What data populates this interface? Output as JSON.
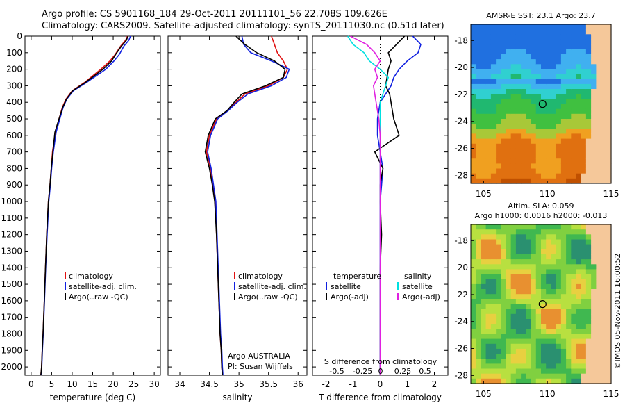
{
  "title_line1": "Argo profile: CS 5901168_184 29-Oct-2011 20111101_56 22.708S 109.626E",
  "title_line2": "Climatology: CARS2009. Satellite-adjusted climatology: synTS_20111030.nc (0.51d later)",
  "colors": {
    "climatology": "#e01010",
    "satellite": "#1020e0",
    "argo": "#000000",
    "sal_satellite": "#00e0e0",
    "sal_argo": "#e020e0"
  },
  "depth_axis": {
    "ylim": [
      0,
      2050
    ],
    "ticks": [
      0,
      100,
      200,
      300,
      400,
      500,
      600,
      700,
      800,
      900,
      1000,
      1100,
      1200,
      1300,
      1400,
      1500,
      1600,
      1700,
      1800,
      1900,
      2000
    ]
  },
  "chart_data": [
    {
      "type": "line",
      "xlabel": "temperature (deg C)",
      "ylabel": "",
      "xlim": [
        -1.5,
        31.5
      ],
      "xticks": [
        0,
        5,
        10,
        15,
        20,
        25,
        30
      ],
      "legend": [
        "climatology",
        "satellite-adj. clim.",
        "Argo(..raw -QC)"
      ],
      "legend_position": "bottom-center",
      "series": [
        {
          "name": "climatology",
          "color_key": "climatology",
          "x": [
            23.5,
            23.0,
            21.8,
            20.5,
            19.2,
            17.0,
            13.0,
            10.0,
            8.5,
            7.6,
            6.8,
            5.9,
            5.2,
            4.9,
            4.6,
            4.2,
            3.8,
            3.5,
            3.2,
            2.9,
            2.7,
            2.55,
            2.45,
            2.35
          ],
          "y": [
            0,
            25,
            60,
            110,
            150,
            200,
            280,
            330,
            380,
            430,
            500,
            580,
            700,
            800,
            900,
            1000,
            1200,
            1400,
            1600,
            1800,
            1900,
            2000,
            2030,
            2050
          ]
        },
        {
          "name": "satellite-adj. clim.",
          "color_key": "satellite",
          "x": [
            24.2,
            23.8,
            22.6,
            21.5,
            20.2,
            18.2,
            13.5,
            10.3,
            8.7,
            7.8,
            7.0,
            6.1,
            5.4,
            5.0,
            4.7,
            4.3,
            3.9,
            3.55,
            3.25,
            2.95,
            2.75,
            2.6,
            2.5,
            2.4
          ],
          "y": [
            0,
            25,
            60,
            110,
            150,
            200,
            280,
            330,
            380,
            430,
            500,
            580,
            700,
            800,
            900,
            1000,
            1200,
            1400,
            1600,
            1800,
            1900,
            2000,
            2030,
            2050
          ]
        },
        {
          "name": "Argo(..raw -QC)",
          "color_key": "argo",
          "x": [
            23.6,
            23.2,
            22.0,
            20.6,
            19.6,
            17.5,
            13.2,
            10.1,
            8.6,
            7.7,
            6.8,
            5.8,
            5.3,
            4.9,
            4.6,
            4.2,
            3.8,
            3.5,
            3.2,
            2.9,
            2.7,
            2.55,
            2.45,
            2.35
          ],
          "y": [
            0,
            25,
            60,
            110,
            150,
            200,
            280,
            330,
            380,
            430,
            500,
            580,
            700,
            800,
            900,
            1000,
            1200,
            1400,
            1600,
            1800,
            1900,
            2000,
            2030,
            2050
          ]
        }
      ]
    },
    {
      "type": "line",
      "xlabel": "salinity",
      "ylabel": "",
      "xlim": [
        33.8,
        36.15
      ],
      "xticks": [
        34,
        34.5,
        35,
        35.5,
        36
      ],
      "legend": [
        "climatology",
        "satellite-adj. clim.",
        "Argo(..raw -QC)"
      ],
      "legend_position": "bottom-center",
      "annotation": [
        "Argo AUSTRALIA",
        "PI: Susan Wijffels"
      ],
      "series": [
        {
          "name": "climatology",
          "color_key": "climatology",
          "x": [
            35.55,
            35.6,
            35.65,
            35.75,
            35.82,
            35.75,
            35.5,
            35.1,
            34.95,
            34.8,
            34.62,
            34.5,
            34.45,
            34.52,
            34.56,
            34.6,
            34.62,
            34.64,
            34.66,
            34.68,
            34.7,
            34.71,
            34.72
          ],
          "y": [
            0,
            50,
            100,
            150,
            200,
            250,
            300,
            350,
            400,
            450,
            500,
            600,
            700,
            800,
            900,
            1000,
            1200,
            1400,
            1600,
            1800,
            1900,
            2000,
            2050
          ]
        },
        {
          "name": "satellite-adj. clim.",
          "color_key": "satellite",
          "x": [
            35.05,
            35.08,
            35.2,
            35.55,
            35.85,
            35.8,
            35.55,
            35.15,
            34.97,
            34.82,
            34.64,
            34.52,
            34.47,
            34.53,
            34.57,
            34.61,
            34.63,
            34.65,
            34.67,
            34.69,
            34.71,
            34.72,
            34.73
          ],
          "y": [
            0,
            50,
            100,
            150,
            200,
            250,
            300,
            350,
            400,
            450,
            500,
            600,
            700,
            800,
            900,
            1000,
            1200,
            1400,
            1600,
            1800,
            1900,
            2000,
            2050
          ]
        },
        {
          "name": "Argo(..raw -QC)",
          "color_key": "argo",
          "x": [
            34.95,
            35.1,
            35.3,
            35.6,
            35.78,
            35.75,
            35.45,
            35.05,
            34.92,
            34.8,
            34.6,
            34.48,
            34.43,
            34.5,
            34.55,
            34.59,
            34.62,
            34.64,
            34.66,
            34.68,
            34.7,
            34.71,
            34.72
          ],
          "y": [
            0,
            50,
            100,
            150,
            200,
            250,
            300,
            350,
            400,
            450,
            500,
            600,
            700,
            800,
            900,
            1000,
            1200,
            1400,
            1600,
            1800,
            1900,
            2000,
            2050
          ]
        }
      ]
    },
    {
      "type": "line",
      "xlabel": "T difference from climatology",
      "xlabel2": "S difference from climatology",
      "ylabel": "",
      "xlim": [
        -2.5,
        2.5
      ],
      "xticks": [
        -2,
        -1,
        0,
        1,
        2
      ],
      "xticks_top": [
        "-0.5",
        "-0.25",
        "0",
        "0.25",
        "0.5"
      ],
      "legend_left_title": "temperature",
      "legend_right_title": "salinity",
      "legend": [
        "satellite",
        "Argo(-adj)",
        "satellite",
        "Argo(-adj)"
      ],
      "legend_position": "bottom-center",
      "series": [
        {
          "name": "satellite",
          "color_key": "satellite",
          "x": [
            1.2,
            1.5,
            1.4,
            1.0,
            0.7,
            0.5,
            0.4,
            0.2,
            0.0,
            -0.1,
            -0.1,
            0.0,
            0.1,
            0.05,
            0.0,
            0.0,
            0.0,
            0.0,
            0.0,
            0.0
          ],
          "y": [
            0,
            50,
            100,
            150,
            200,
            250,
            300,
            350,
            400,
            500,
            600,
            700,
            800,
            900,
            1000,
            1200,
            1400,
            1600,
            1800,
            2050
          ]
        },
        {
          "name": "Argo(-adj)",
          "color_key": "argo",
          "x": [
            0.9,
            0.6,
            0.3,
            0.4,
            0.3,
            0.25,
            0.2,
            0.35,
            0.4,
            0.5,
            0.7,
            -0.2,
            0.1,
            0.0,
            0.0,
            0.05,
            0.0,
            0.0,
            0.0,
            0.0
          ],
          "y": [
            0,
            50,
            100,
            150,
            200,
            250,
            300,
            350,
            400,
            500,
            600,
            700,
            800,
            900,
            1000,
            1200,
            1400,
            1600,
            1800,
            2050
          ]
        },
        {
          "name": "satellite",
          "color_key": "sal_satellite",
          "x": [
            -1.2,
            -1.0,
            -0.6,
            -0.4,
            0.0,
            0.3,
            0.2,
            0.1,
            0.0,
            0.0,
            0.0,
            0.0,
            0.0,
            0.0,
            0.0,
            0.0,
            0.0,
            0.0,
            0.0,
            0.0
          ],
          "y": [
            0,
            50,
            100,
            150,
            200,
            250,
            300,
            350,
            400,
            500,
            600,
            700,
            800,
            900,
            1000,
            1200,
            1400,
            1600,
            1800,
            2050
          ]
        },
        {
          "name": "Argo(-adj)",
          "color_key": "sal_argo",
          "x": [
            -1.1,
            -0.5,
            -0.2,
            0.0,
            -0.2,
            -0.1,
            -0.25,
            -0.2,
            -0.15,
            -0.05,
            0.0,
            0.0,
            0.0,
            0.0,
            0.0,
            0.0,
            0.0,
            0.0,
            0.0,
            0.0
          ],
          "y": [
            0,
            50,
            100,
            150,
            200,
            250,
            300,
            350,
            400,
            500,
            600,
            700,
            800,
            900,
            1000,
            1200,
            1400,
            1600,
            1800,
            2050
          ]
        }
      ]
    },
    {
      "type": "heatmap",
      "title": "AMSR-E SST: 23.1  Argo: 23.7",
      "xlim": [
        104,
        115
      ],
      "ylim": [
        -28.6,
        -16.8
      ],
      "xticks": [
        105,
        110,
        115
      ],
      "yticks": [
        -18,
        -20,
        -22,
        -24,
        -26,
        -28
      ],
      "marker": {
        "lon": 109.626,
        "lat": -22.708
      }
    },
    {
      "type": "heatmap",
      "title": "Altim. SLA: 0.059",
      "subtitle": "Argo h1000: 0.0016 h2000: -0.013",
      "xlim": [
        104,
        115
      ],
      "ylim": [
        -28.6,
        -16.8
      ],
      "xticks": [
        105,
        110,
        115
      ],
      "yticks": [
        -18,
        -20,
        -22,
        -24,
        -26,
        -28
      ],
      "marker": {
        "lon": 109.626,
        "lat": -22.708
      }
    }
  ],
  "footer_text": "©IMOS 05-Nov-2011 16:00:52"
}
